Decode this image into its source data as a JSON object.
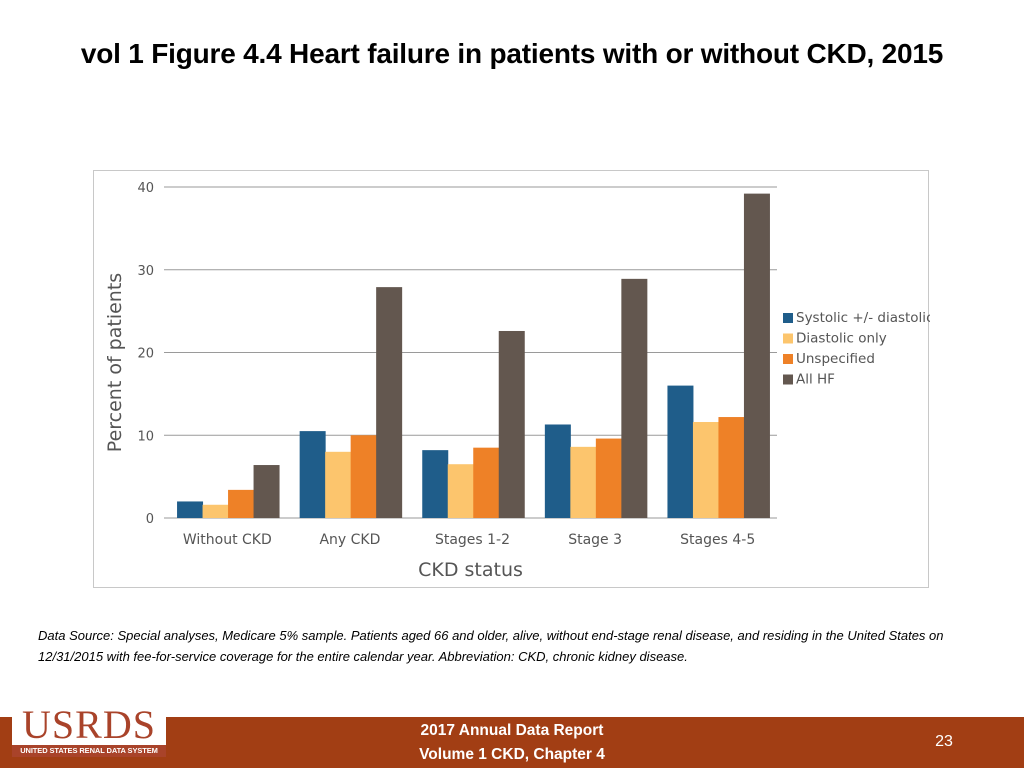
{
  "slide": {
    "title": "vol 1 Figure 4.4 Heart failure in patients with or without CKD, 2015",
    "source_note": "Data Source: Special analyses, Medicare 5% sample. Patients aged 66 and older, alive, without end-stage renal disease, and residing in the United States on 12/31/2015 with fee-for-service coverage for the entire calendar year. Abbreviation: CKD, chronic kidney disease."
  },
  "footer": {
    "logo_text": "USRDS",
    "logo_subtext": "UNITED STATES RENAL DATA SYSTEM",
    "report_line1": "2017 Annual Data Report",
    "report_line2": "Volume 1 CKD, Chapter 4",
    "page_number": "23"
  },
  "colors": {
    "footer_bar": "#a23e14",
    "logo": "#a9432a"
  },
  "chart_data": {
    "type": "bar",
    "title": "",
    "xlabel": "CKD status",
    "ylabel": "Percent of patients",
    "ylim": [
      0,
      40
    ],
    "yticks": [
      0,
      10,
      20,
      30,
      40
    ],
    "ytick_labels": [
      "0",
      "10",
      "20",
      "30",
      "40"
    ],
    "grid": true,
    "legend_position": "right",
    "categories": [
      "Without CKD",
      "Any CKD",
      "Stages 1-2",
      "Stage 3",
      "Stages 4-5"
    ],
    "series": [
      {
        "name": "Systolic +/- diastolic",
        "color": "#1f5d8a",
        "values": [
          2.0,
          10.5,
          8.2,
          11.3,
          16.0
        ]
      },
      {
        "name": "Diastolic only",
        "color": "#fcc56d",
        "values": [
          1.6,
          8.0,
          6.5,
          8.6,
          11.6
        ]
      },
      {
        "name": "Unspecified",
        "color": "#ee8127",
        "values": [
          3.4,
          10.0,
          8.5,
          9.6,
          12.2
        ]
      },
      {
        "name": "All HF",
        "color": "#63574f",
        "values": [
          6.4,
          27.9,
          22.6,
          28.9,
          39.2
        ]
      }
    ]
  }
}
